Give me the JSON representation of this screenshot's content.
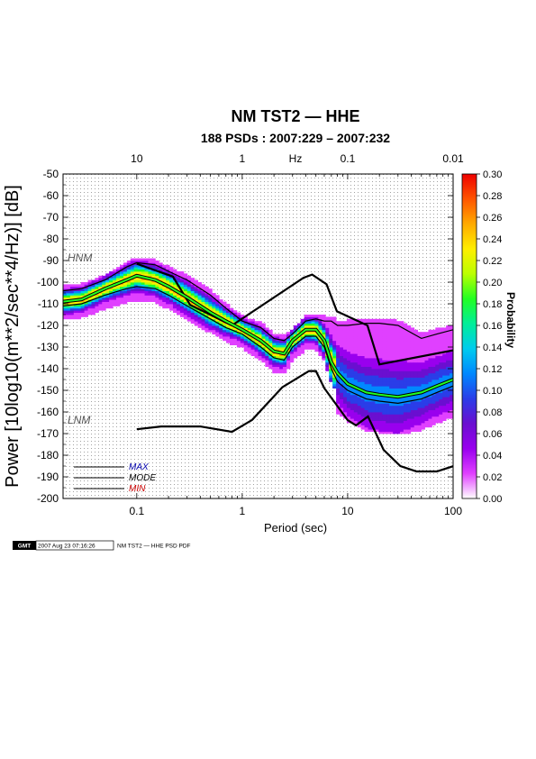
{
  "chart_data": {
    "type": "heatmap",
    "title": "NM TST2 — HHE",
    "subtitle": "188 PSDs : 2007:229 – 2007:232",
    "xlabel": "Period (sec)",
    "ylabel": "Power [10log10(m**2/sec**4/Hz)] [dB]",
    "x_scale": "log",
    "xlim": [
      0.02,
      100
    ],
    "ylim": [
      -200,
      -50
    ],
    "grid": true,
    "x_ticks": [
      "0.1",
      "1",
      "10",
      "100"
    ],
    "y_ticks": [
      "-50",
      "-60",
      "-70",
      "-80",
      "-90",
      "-100",
      "-110",
      "-120",
      "-130",
      "-140",
      "-150",
      "-160",
      "-170",
      "-180",
      "-190",
      "-200"
    ],
    "top_axis": {
      "label": "Hz",
      "ticks": [
        "10",
        "1",
        "0.1",
        "0.01"
      ]
    },
    "colorbar": {
      "label": "Probability",
      "range": [
        0,
        0.3
      ],
      "ticks": [
        "0.30",
        "0.28",
        "0.26",
        "0.24",
        "0.22",
        "0.20",
        "0.18",
        "0.16",
        "0.14",
        "0.12",
        "0.10",
        "0.08",
        "0.06",
        "0.04",
        "0.02",
        "0.00"
      ],
      "colors": [
        "#ffffff",
        "#e040ff",
        "#9900ee",
        "#6a0fd0",
        "#2a3de8",
        "#0088ff",
        "#00ccee",
        "#00ee99",
        "#22ff22",
        "#bbff00",
        "#ffee00",
        "#ffaa00",
        "#ff5500",
        "#ee0000"
      ]
    },
    "noise_models": [
      {
        "name": "HNM",
        "x": [
          0.1,
          0.22,
          0.32,
          0.8,
          3.8,
          4.6,
          6.3,
          7.9,
          15.4,
          20,
          100
        ],
        "y": [
          -91.5,
          -97.4,
          -110.5,
          -120,
          -98,
          -96.5,
          -101,
          -113.5,
          -120,
          -138,
          -131.5
        ]
      },
      {
        "name": "LNM",
        "x": [
          0.1,
          0.17,
          0.4,
          0.8,
          1.24,
          2.4,
          4.3,
          5,
          6,
          10,
          12,
          15.6,
          21.9,
          31.6,
          45,
          70,
          101
        ],
        "y": [
          -168,
          -166.7,
          -166.7,
          -169.2,
          -163.7,
          -148.6,
          -141.1,
          -141.1,
          -149,
          -163.8,
          -166.2,
          -162.1,
          -177.5,
          -185,
          -187.5,
          -187.5,
          -185
        ]
      }
    ],
    "series": [
      {
        "name": "MAX",
        "color": "#000000",
        "x": [
          0.02,
          0.03,
          0.05,
          0.08,
          0.1,
          0.15,
          0.2,
          0.3,
          0.5,
          0.7,
          1,
          1.5,
          2,
          2.5,
          3,
          4,
          5,
          6,
          7,
          8,
          10,
          15,
          20,
          30,
          50,
          70,
          100
        ],
        "y": [
          -104,
          -103,
          -99,
          -93,
          -91,
          -92,
          -95,
          -99,
          -106,
          -112,
          -118,
          -121,
          -126,
          -127,
          -124,
          -118,
          -117,
          -118,
          -118,
          -120,
          -120,
          -119,
          -119,
          -120,
          -126,
          -124,
          -122
        ]
      },
      {
        "name": "MODE",
        "color": "#22ff22",
        "x": [
          0.02,
          0.03,
          0.05,
          0.08,
          0.1,
          0.15,
          0.2,
          0.3,
          0.5,
          0.7,
          1,
          1.5,
          2,
          2.5,
          3,
          4,
          5,
          6,
          7,
          8,
          10,
          15,
          20,
          30,
          50,
          70,
          100
        ],
        "y": [
          -109,
          -108,
          -103,
          -99,
          -97,
          -99,
          -102,
          -107,
          -114,
          -118,
          -122,
          -127,
          -132,
          -133,
          -127,
          -122,
          -122,
          -127,
          -137,
          -142,
          -147,
          -151,
          -152,
          -153,
          -151,
          -148,
          -145
        ]
      },
      {
        "name": "MIN",
        "color": "#000000",
        "x": [
          0.02,
          0.03,
          0.05,
          0.08,
          0.1,
          0.15,
          0.2,
          0.3,
          0.5,
          0.7,
          1,
          1.5,
          2,
          2.5,
          3,
          4,
          5,
          6,
          7,
          8,
          10,
          15,
          20,
          30,
          50,
          70,
          100
        ],
        "y": [
          -111,
          -110,
          -106,
          -103,
          -102,
          -103,
          -106,
          -111,
          -117,
          -121,
          -124,
          -130,
          -135,
          -136,
          -130,
          -125,
          -125,
          -130,
          -140,
          -146,
          -150,
          -154,
          -155,
          -156,
          -154,
          -151,
          -148
        ]
      }
    ],
    "legend": {
      "placement": "bottom-left",
      "entries": [
        {
          "label": "MAX",
          "color": "#0000aa"
        },
        {
          "label": "MODE",
          "color": "#000000"
        },
        {
          "label": "MIN",
          "color": "#cc0000"
        }
      ]
    }
  },
  "footer": {
    "logo": "GMT",
    "timestamp": "2007 Aug 23 07:16:26",
    "caption": "NM TST2 — HHE PSD PDF"
  }
}
